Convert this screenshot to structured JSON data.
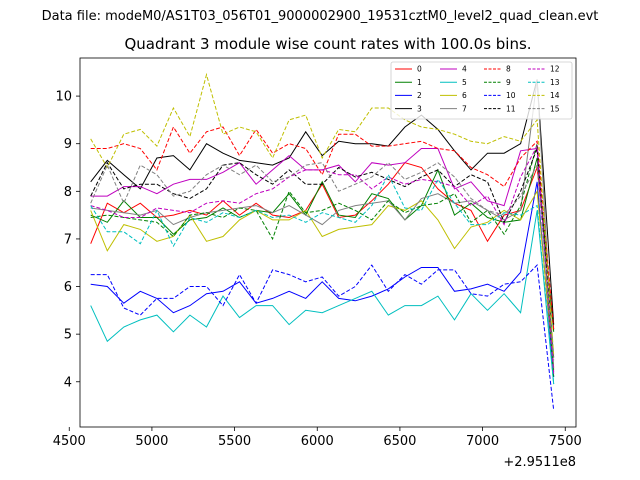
{
  "chart_data": {
    "type": "line",
    "suptitle": "Data file: modeM0/AS1T03_056T01_9000002900_19531cztM0_level2_quad_clean.evt",
    "title": "Quadrant 3 module wise count rates with 100.0s bins.",
    "xlabel": "",
    "ylabel": "",
    "x_offset_label": "+2.9511e8",
    "xlim": [
      4565,
      7565
    ],
    "ylim": [
      3.05,
      10.8
    ],
    "x_ticks": [
      4500,
      5000,
      5500,
      6000,
      6500,
      7000,
      7500
    ],
    "y_ticks": [
      4,
      5,
      6,
      7,
      8,
      9,
      10
    ],
    "legend_position": "top-right",
    "x": [
      4630,
      4730,
      4830,
      4930,
      5030,
      5130,
      5230,
      5330,
      5430,
      5530,
      5630,
      5730,
      5830,
      5930,
      6030,
      6130,
      6230,
      6330,
      6430,
      6530,
      6630,
      6730,
      6830,
      6930,
      7030,
      7130,
      7230,
      7330,
      7430
    ],
    "series": [
      {
        "name": "0",
        "color": "#ff0000",
        "dash": "solid",
        "values": [
          6.9,
          7.75,
          7.55,
          7.75,
          7.45,
          7.5,
          7.6,
          7.5,
          7.8,
          7.5,
          7.75,
          7.5,
          7.45,
          7.6,
          8.15,
          7.45,
          7.5,
          7.8,
          8.15,
          8.6,
          8.5,
          8.05,
          7.75,
          7.6,
          6.95,
          7.5,
          7.6,
          8.5,
          5.1
        ]
      },
      {
        "name": "1",
        "color": "#008000",
        "dash": "solid",
        "values": [
          7.5,
          7.35,
          7.8,
          7.45,
          7.45,
          7.1,
          7.4,
          7.45,
          7.65,
          7.45,
          7.6,
          7.55,
          7.95,
          7.5,
          8.2,
          7.5,
          7.45,
          7.95,
          7.85,
          7.4,
          7.7,
          8.45,
          7.5,
          7.75,
          7.45,
          7.35,
          7.4,
          8.7,
          5.05
        ]
      },
      {
        "name": "2",
        "color": "#0000ff",
        "dash": "solid",
        "values": [
          6.05,
          6.0,
          5.65,
          5.9,
          5.75,
          5.45,
          5.6,
          5.85,
          5.9,
          6.1,
          5.65,
          5.75,
          5.9,
          5.75,
          6.1,
          5.75,
          5.7,
          5.8,
          5.95,
          6.2,
          6.4,
          6.4,
          5.9,
          5.95,
          6.05,
          5.9,
          6.3,
          8.2,
          4.1
        ]
      },
      {
        "name": "3",
        "color": "#000000",
        "dash": "solid",
        "values": [
          8.2,
          8.65,
          8.35,
          8.05,
          8.7,
          8.75,
          8.45,
          9.0,
          8.8,
          8.65,
          8.6,
          8.55,
          8.7,
          9.25,
          8.75,
          9.05,
          9.0,
          9.0,
          8.95,
          9.35,
          9.6,
          9.3,
          8.85,
          8.45,
          8.8,
          8.8,
          9.0,
          10.35,
          5.2
        ]
      },
      {
        "name": "4",
        "color": "#bf00bf",
        "dash": "solid",
        "values": [
          7.9,
          7.9,
          8.1,
          8.1,
          7.95,
          8.15,
          8.25,
          8.25,
          8.4,
          8.6,
          8.15,
          8.45,
          8.75,
          8.45,
          8.45,
          8.55,
          8.2,
          8.6,
          8.55,
          8.6,
          8.9,
          8.9,
          8.05,
          8.2,
          7.8,
          7.7,
          8.85,
          8.9,
          4.2
        ]
      },
      {
        "name": "5",
        "color": "#00bfbf",
        "dash": "solid",
        "values": [
          5.6,
          4.85,
          5.15,
          5.3,
          5.4,
          5.05,
          5.4,
          5.15,
          5.8,
          5.35,
          5.6,
          5.6,
          5.2,
          5.5,
          5.45,
          5.6,
          5.75,
          5.9,
          5.4,
          5.6,
          5.6,
          5.8,
          5.3,
          5.85,
          5.5,
          5.85,
          5.45,
          7.6,
          3.95
        ]
      },
      {
        "name": "6",
        "color": "#bfbf00",
        "dash": "solid",
        "values": [
          7.6,
          6.75,
          7.3,
          7.2,
          6.95,
          7.05,
          7.5,
          6.95,
          7.05,
          7.4,
          7.6,
          7.4,
          7.4,
          7.6,
          7.05,
          7.2,
          7.25,
          7.3,
          7.7,
          7.6,
          7.8,
          7.4,
          6.8,
          7.25,
          7.35,
          7.6,
          7.4,
          8.0,
          4.3
        ]
      },
      {
        "name": "7",
        "color": "#808080",
        "dash": "solid",
        "values": [
          7.65,
          7.6,
          7.55,
          7.5,
          7.6,
          7.3,
          7.45,
          7.55,
          7.6,
          7.65,
          7.7,
          7.55,
          7.7,
          7.5,
          7.3,
          7.6,
          7.7,
          7.75,
          7.8,
          7.4,
          7.85,
          7.95,
          7.75,
          7.8,
          7.6,
          7.4,
          7.6,
          10.35,
          4.25
        ]
      },
      {
        "name": "8",
        "color": "#ff0000",
        "dash": "dashed",
        "values": [
          8.9,
          8.9,
          9.0,
          8.9,
          8.45,
          9.35,
          8.8,
          9.25,
          9.35,
          8.75,
          9.3,
          8.8,
          9.0,
          8.9,
          8.35,
          9.2,
          9.2,
          8.95,
          8.95,
          9.0,
          9.05,
          8.9,
          8.85,
          8.5,
          8.35,
          8.1,
          8.7,
          9.05,
          5.1
        ]
      },
      {
        "name": "9",
        "color": "#008000",
        "dash": "dashed",
        "values": [
          7.45,
          7.5,
          7.45,
          7.4,
          7.35,
          7.05,
          7.5,
          7.55,
          7.45,
          7.65,
          7.6,
          7.0,
          8.0,
          7.55,
          7.6,
          7.75,
          7.6,
          7.4,
          7.8,
          7.55,
          7.7,
          7.75,
          7.95,
          7.35,
          7.6,
          7.1,
          7.7,
          9.0,
          4.1
        ]
      },
      {
        "name": "10",
        "color": "#0000ff",
        "dash": "dashed",
        "values": [
          6.25,
          6.25,
          5.55,
          5.4,
          5.75,
          5.75,
          6.0,
          6.0,
          5.6,
          6.25,
          5.65,
          6.35,
          6.25,
          6.1,
          6.2,
          5.8,
          6.0,
          6.45,
          5.9,
          6.25,
          6.05,
          6.35,
          6.35,
          5.85,
          5.8,
          6.05,
          6.1,
          6.45,
          3.4
        ]
      },
      {
        "name": "11",
        "color": "#000000",
        "dash": "dashed",
        "values": [
          7.9,
          8.6,
          8.05,
          8.15,
          8.15,
          7.95,
          7.85,
          8.05,
          8.55,
          8.6,
          8.35,
          8.15,
          8.45,
          8.15,
          8.15,
          8.5,
          8.3,
          8.4,
          8.25,
          8.1,
          8.3,
          8.45,
          8.1,
          8.35,
          8.2,
          7.35,
          8.0,
          8.9,
          4.5
        ]
      },
      {
        "name": "12",
        "color": "#bf00bf",
        "dash": "dashed",
        "values": [
          7.7,
          7.6,
          7.45,
          7.45,
          7.65,
          7.6,
          7.55,
          7.75,
          7.8,
          7.75,
          7.95,
          8.05,
          8.3,
          8.45,
          8.45,
          8.35,
          8.35,
          8.05,
          8.3,
          8.15,
          8.25,
          8.2,
          8.1,
          7.7,
          7.9,
          7.3,
          8.3,
          8.95,
          4.15
        ]
      },
      {
        "name": "13",
        "color": "#00bfbf",
        "dash": "dashed",
        "values": [
          7.7,
          7.15,
          7.15,
          6.9,
          7.6,
          6.85,
          7.45,
          7.35,
          7.55,
          7.45,
          7.6,
          7.45,
          7.5,
          7.35,
          7.55,
          7.45,
          7.35,
          7.7,
          8.35,
          7.65,
          7.6,
          8.25,
          7.75,
          7.3,
          7.3,
          7.55,
          7.5,
          7.7,
          3.95
        ]
      },
      {
        "name": "14",
        "color": "#bfbf00",
        "dash": "dashed",
        "values": [
          9.1,
          8.5,
          9.2,
          9.3,
          8.95,
          9.75,
          9.15,
          10.45,
          9.2,
          9.35,
          9.25,
          8.7,
          9.5,
          9.6,
          8.7,
          9.3,
          9.25,
          9.75,
          9.75,
          9.5,
          9.35,
          9.3,
          9.2,
          9.05,
          9.0,
          9.15,
          9.05,
          9.5,
          4.55
        ]
      },
      {
        "name": "15",
        "color": "#808080",
        "dash": "dashed",
        "values": [
          7.75,
          8.55,
          7.75,
          8.55,
          8.35,
          7.9,
          8.0,
          8.35,
          8.55,
          8.35,
          8.55,
          8.2,
          8.3,
          8.55,
          8.6,
          8.0,
          8.15,
          8.3,
          8.6,
          8.25,
          8.4,
          8.6,
          8.3,
          7.85,
          7.6,
          7.5,
          7.9,
          8.55,
          4.45
        ]
      }
    ]
  }
}
